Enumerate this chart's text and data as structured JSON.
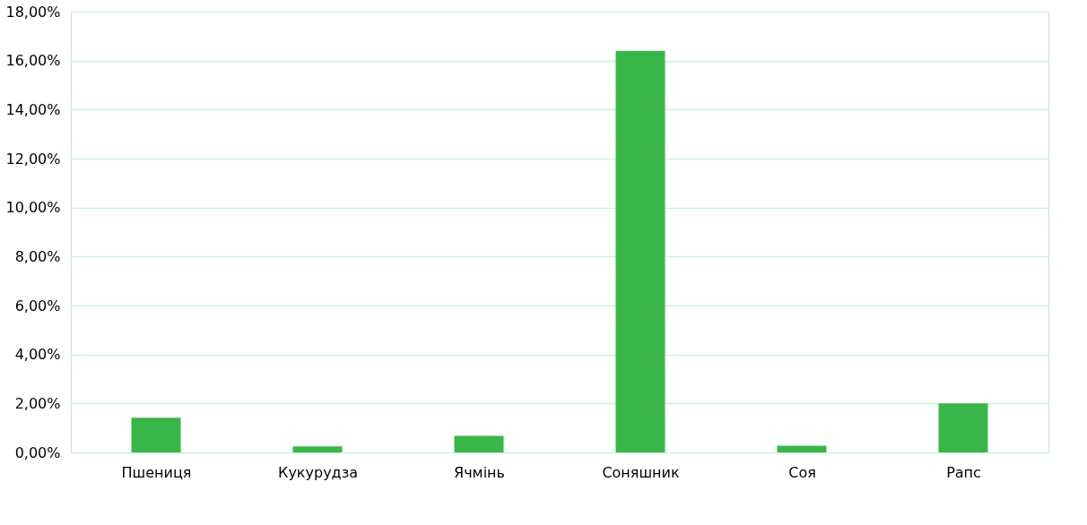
{
  "chart_data": {
    "type": "bar",
    "categories": [
      "Пшениця",
      "Кукурудза",
      "Ячмінь",
      "Соняшник",
      "Соя",
      "Рапс"
    ],
    "values": [
      1.42,
      0.25,
      0.68,
      16.4,
      0.27,
      2.0
    ],
    "color": "#3ab54a",
    "ylim": [
      0,
      18
    ],
    "yticks": [
      {
        "value": 0,
        "label": "0,00%"
      },
      {
        "value": 2,
        "label": "2,00%"
      },
      {
        "value": 4,
        "label": "4,00%"
      },
      {
        "value": 6,
        "label": "6,00%"
      },
      {
        "value": 8,
        "label": "8,00%"
      },
      {
        "value": 10,
        "label": "10,00%"
      },
      {
        "value": 12,
        "label": "12,00%"
      },
      {
        "value": 14,
        "label": "14,00%"
      },
      {
        "value": 16,
        "label": "16,00%"
      },
      {
        "value": 18,
        "label": "18,00%"
      }
    ],
    "grid": "y"
  }
}
